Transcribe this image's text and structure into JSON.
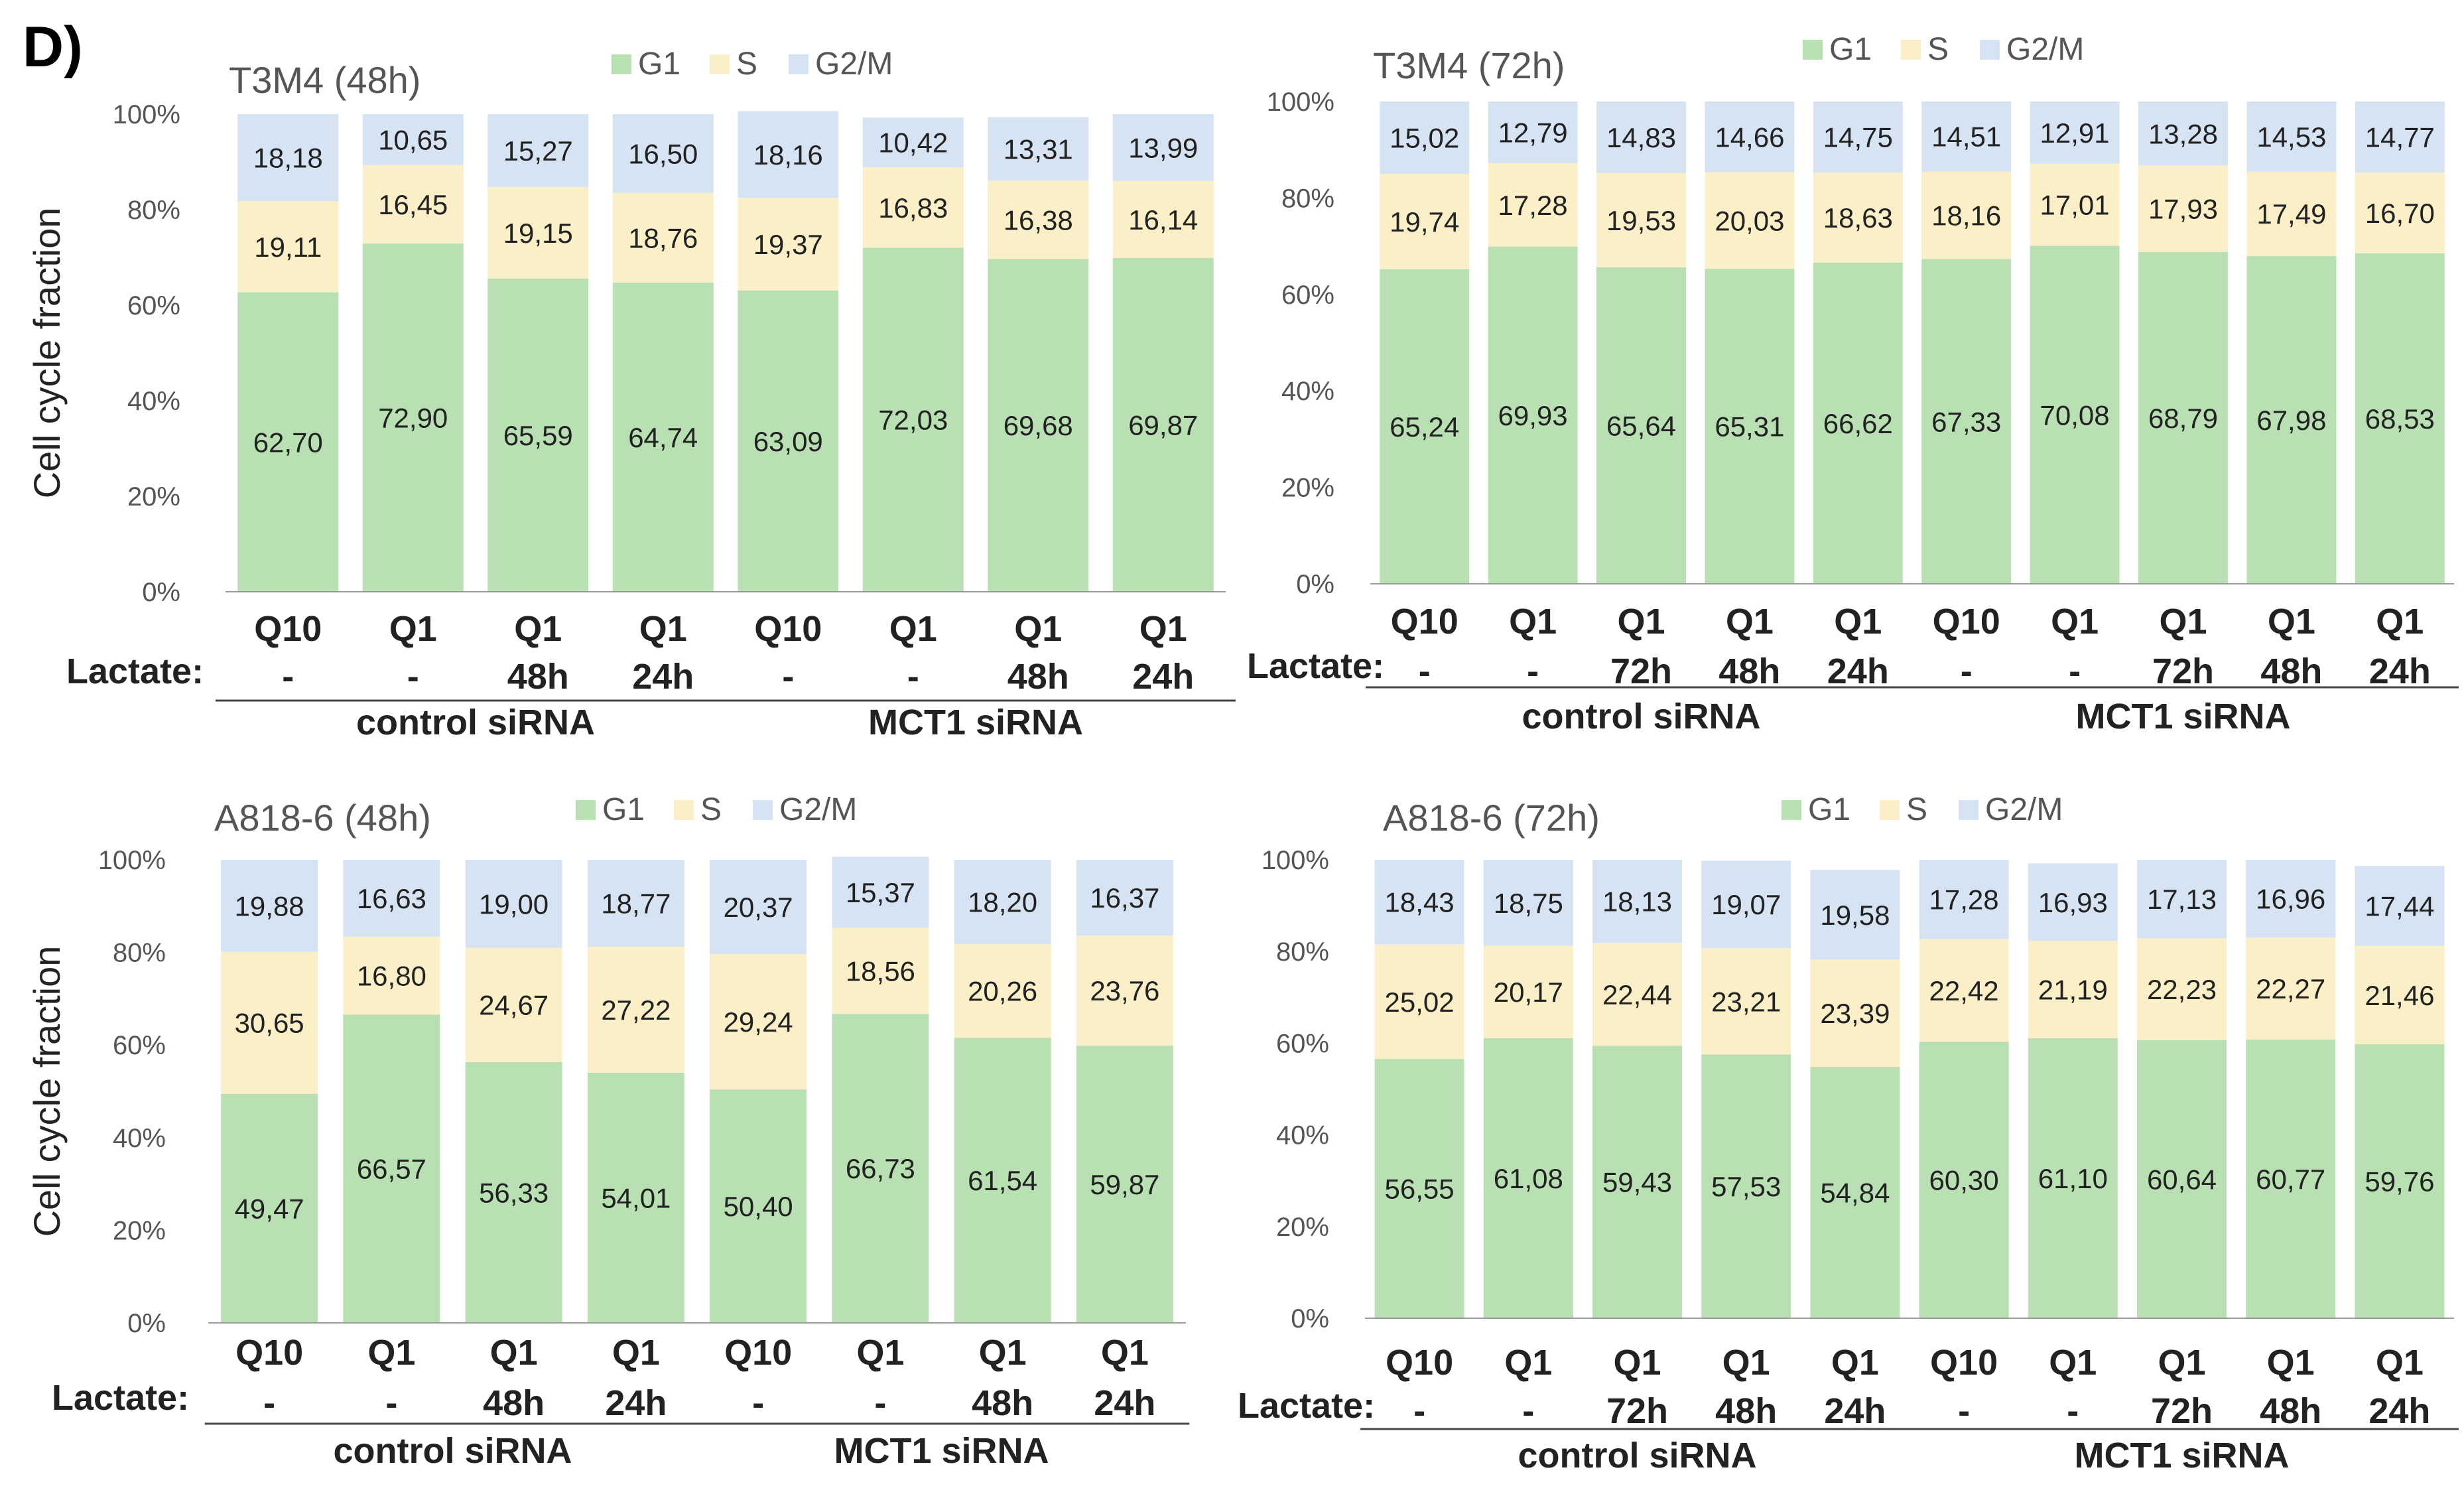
{
  "figure": {
    "panel_label": "D)"
  },
  "colors": {
    "G1": "#b8e0b3",
    "S": "#fbefc7",
    "G2M": "#d6e3f3",
    "title": "#555555",
    "text": "#222222",
    "axis": "#444444"
  },
  "common": {
    "ylabel": "Cell cycle fraction",
    "yticks": [
      "0%",
      "20%",
      "40%",
      "60%",
      "80%",
      "100%"
    ],
    "lactate_label": "Lactate:",
    "legend": [
      "G1",
      "S",
      "G2/M"
    ]
  },
  "chart_data": [
    {
      "type": "bar",
      "stacked": true,
      "title": "T3M4 (48h)",
      "ylabel": "Cell cycle fraction",
      "ylim": [
        0,
        100
      ],
      "categories": [
        "Q10",
        "Q1",
        "Q1",
        "Q1",
        "Q10",
        "Q1",
        "Q1",
        "Q1"
      ],
      "lactate": [
        "-",
        "-",
        "48h",
        "24h",
        "-",
        "-",
        "48h",
        "24h"
      ],
      "groups": [
        {
          "name": "control siRNA",
          "start": 0,
          "end": 3
        },
        {
          "name": "MCT1 siRNA",
          "start": 4,
          "end": 7
        }
      ],
      "series": [
        {
          "name": "G1",
          "values": [
            62.7,
            72.9,
            65.59,
            64.74,
            63.09,
            72.03,
            69.68,
            69.87
          ],
          "labels": [
            "62,70",
            "72,90",
            "65,59",
            "64,74",
            "63,09",
            "72,03",
            "69,68",
            "69,87"
          ]
        },
        {
          "name": "S",
          "values": [
            19.11,
            16.45,
            19.15,
            18.76,
            19.37,
            16.83,
            16.38,
            16.14
          ],
          "labels": [
            "19,11",
            "16,45",
            "19,15",
            "18,76",
            "19,37",
            "16,83",
            "16,38",
            "16,14"
          ]
        },
        {
          "name": "G2/M",
          "values": [
            18.18,
            10.65,
            15.27,
            16.5,
            18.16,
            10.42,
            13.31,
            13.99
          ],
          "labels": [
            "18,18",
            "10,65",
            "15,27",
            "16,50",
            "18,16",
            "10,42",
            "13,31",
            "13,99"
          ]
        }
      ]
    },
    {
      "type": "bar",
      "stacked": true,
      "title": "T3M4 (72h)",
      "ylabel": "",
      "ylim": [
        0,
        100
      ],
      "categories": [
        "Q10",
        "Q1",
        "Q1",
        "Q1",
        "Q1",
        "Q10",
        "Q1",
        "Q1",
        "Q1",
        "Q1"
      ],
      "lactate": [
        "-",
        "-",
        "72h",
        "48h",
        "24h",
        "-",
        "-",
        "72h",
        "48h",
        "24h"
      ],
      "groups": [
        {
          "name": "control siRNA",
          "start": 0,
          "end": 4
        },
        {
          "name": "MCT1 siRNA",
          "start": 5,
          "end": 9
        }
      ],
      "series": [
        {
          "name": "G1",
          "values": [
            65.24,
            69.93,
            65.64,
            65.31,
            66.62,
            67.33,
            70.08,
            68.79,
            67.98,
            68.53
          ],
          "labels": [
            "65,24",
            "69,93",
            "65,64",
            "65,31",
            "66,62",
            "67,33",
            "70,08",
            "68,79",
            "67,98",
            "68,53"
          ]
        },
        {
          "name": "S",
          "values": [
            19.74,
            17.28,
            19.53,
            20.03,
            18.63,
            18.16,
            17.01,
            17.93,
            17.49,
            16.7
          ],
          "labels": [
            "19,74",
            "17,28",
            "19,53",
            "20,03",
            "18,63",
            "18,16",
            "17,01",
            "17,93",
            "17,49",
            "16,70"
          ]
        },
        {
          "name": "G2/M",
          "values": [
            15.02,
            12.79,
            14.83,
            14.66,
            14.75,
            14.51,
            12.91,
            13.28,
            14.53,
            14.77
          ],
          "labels": [
            "15,02",
            "12,79",
            "14,83",
            "14,66",
            "14,75",
            "14,51",
            "12,91",
            "13,28",
            "14,53",
            "14,77"
          ]
        }
      ]
    },
    {
      "type": "bar",
      "stacked": true,
      "title": "A818-6 (48h)",
      "ylabel": "Cell cycle fraction",
      "ylim": [
        0,
        100
      ],
      "categories": [
        "Q10",
        "Q1",
        "Q1",
        "Q1",
        "Q10",
        "Q1",
        "Q1",
        "Q1"
      ],
      "lactate": [
        "-",
        "-",
        "48h",
        "24h",
        "-",
        "-",
        "48h",
        "24h"
      ],
      "groups": [
        {
          "name": "control siRNA",
          "start": 0,
          "end": 3
        },
        {
          "name": "MCT1 siRNA",
          "start": 4,
          "end": 7
        }
      ],
      "series": [
        {
          "name": "G1",
          "values": [
            49.47,
            66.57,
            56.33,
            54.01,
            50.4,
            66.73,
            61.54,
            59.87
          ],
          "labels": [
            "49,47",
            "66,57",
            "56,33",
            "54,01",
            "50,40",
            "66,73",
            "61,54",
            "59,87"
          ]
        },
        {
          "name": "S",
          "values": [
            30.65,
            16.8,
            24.67,
            27.22,
            29.24,
            18.56,
            20.26,
            23.76
          ],
          "labels": [
            "30,65",
            "16,80",
            "24,67",
            "27,22",
            "29,24",
            "18,56",
            "20,26",
            "23,76"
          ]
        },
        {
          "name": "G2/M",
          "values": [
            19.88,
            16.63,
            19.0,
            18.77,
            20.37,
            15.37,
            18.2,
            16.37
          ],
          "labels": [
            "19,88",
            "16,63",
            "19,00",
            "18,77",
            "20,37",
            "15,37",
            "18,20",
            "16,37"
          ]
        }
      ]
    },
    {
      "type": "bar",
      "stacked": true,
      "title": "A818-6 (72h)",
      "ylabel": "",
      "ylim": [
        0,
        100
      ],
      "categories": [
        "Q10",
        "Q1",
        "Q1",
        "Q1",
        "Q1",
        "Q10",
        "Q1",
        "Q1",
        "Q1",
        "Q1"
      ],
      "lactate": [
        "-",
        "-",
        "72h",
        "48h",
        "24h",
        "-",
        "-",
        "72h",
        "48h",
        "24h"
      ],
      "groups": [
        {
          "name": "control siRNA",
          "start": 0,
          "end": 4
        },
        {
          "name": "MCT1 siRNA",
          "start": 5,
          "end": 9
        }
      ],
      "series": [
        {
          "name": "G1",
          "values": [
            56.55,
            61.08,
            59.43,
            57.53,
            54.84,
            60.3,
            61.1,
            60.64,
            60.77,
            59.76
          ],
          "labels": [
            "56,55",
            "61,08",
            "59,43",
            "57,53",
            "54,84",
            "60,30",
            "61,10",
            "60,64",
            "60,77",
            "59,76"
          ]
        },
        {
          "name": "S",
          "values": [
            25.02,
            20.17,
            22.44,
            23.21,
            23.39,
            22.42,
            21.19,
            22.23,
            22.27,
            21.46
          ],
          "labels": [
            "25,02",
            "20,17",
            "22,44",
            "23,21",
            "23,39",
            "22,42",
            "21,19",
            "22,23",
            "22,27",
            "21,46"
          ]
        },
        {
          "name": "G2/M",
          "values": [
            18.43,
            18.75,
            18.13,
            19.07,
            19.58,
            17.28,
            16.93,
            17.13,
            16.96,
            17.44
          ],
          "labels": [
            "18,43",
            "18,75",
            "18,13",
            "19,07",
            "19,58",
            "17,28",
            "16,93",
            "17,13",
            "16,96",
            "17,44"
          ]
        }
      ]
    }
  ]
}
